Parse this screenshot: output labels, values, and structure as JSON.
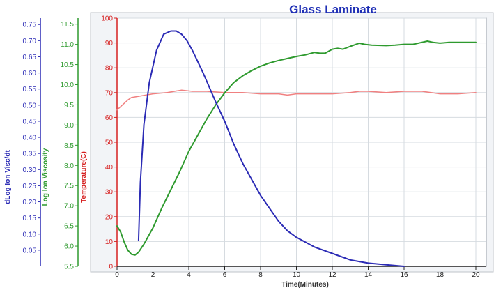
{
  "chart_data": {
    "type": "line",
    "title": "Glass Laminate",
    "xlabel": "Time(Minutes)",
    "xlim": [
      0,
      20
    ],
    "x_ticks": [
      "0",
      "2",
      "4",
      "6",
      "8",
      "10",
      "12",
      "14",
      "16",
      "18",
      "20"
    ],
    "grid": true,
    "axes": [
      {
        "id": "dlog",
        "label": "dLog Ion Visc/dt",
        "color": "#2b2bb5",
        "ylim": [
          0.0,
          0.77
        ],
        "ticks": [
          "0.05",
          "0.10",
          "0.15",
          "0.20",
          "0.25",
          "0.30",
          "0.35",
          "0.40",
          "0.45",
          "0.50",
          "0.55",
          "0.60",
          "0.65",
          "0.70",
          "0.75"
        ]
      },
      {
        "id": "logvisc",
        "label": "Log Ion Viscosity",
        "color": "#2e9a2e",
        "ylim": [
          5.5,
          11.65
        ],
        "ticks": [
          "5.5",
          "6.0",
          "6.5",
          "7.0",
          "7.5",
          "8.0",
          "8.5",
          "9.0",
          "9.5",
          "10.0",
          "10.5",
          "11.0",
          "11.5"
        ]
      },
      {
        "id": "temp",
        "label": "Temperature(C)",
        "color": "#d62020",
        "ylim": [
          0,
          100
        ],
        "ticks": [
          "0",
          "10",
          "20",
          "30",
          "40",
          "50",
          "60",
          "70",
          "80",
          "90",
          "100"
        ]
      }
    ],
    "series": [
      {
        "axis": "temp",
        "color": "#f08080",
        "x": [
          0.0,
          0.3,
          0.6,
          0.8,
          1.2,
          2.0,
          2.8,
          3.6,
          4.2,
          5.0,
          6.0,
          7.0,
          8.0,
          9.0,
          9.5,
          10.0,
          11.0,
          12.0,
          13.0,
          13.5,
          14.0,
          15.0,
          16.0,
          17.0,
          17.5,
          18.0,
          19.0,
          20.0
        ],
        "y": [
          63.0,
          65.0,
          67.0,
          68.0,
          68.5,
          69.5,
          70.0,
          71.0,
          70.5,
          70.5,
          70.0,
          70.0,
          69.5,
          69.5,
          69.0,
          69.5,
          69.5,
          69.5,
          70.0,
          70.5,
          70.5,
          70.0,
          70.5,
          70.5,
          70.0,
          69.5,
          69.5,
          70.0
        ]
      },
      {
        "axis": "logvisc",
        "color": "#2e9a2e",
        "x": [
          0.0,
          0.2,
          0.4,
          0.6,
          0.8,
          1.0,
          1.2,
          1.5,
          2.0,
          2.5,
          3.0,
          3.5,
          4.0,
          4.5,
          5.0,
          5.5,
          6.0,
          6.5,
          7.0,
          7.5,
          8.0,
          8.5,
          9.0,
          9.5,
          10.0,
          10.5,
          11.0,
          11.3,
          11.6,
          12.0,
          12.3,
          12.6,
          13.0,
          13.5,
          13.8,
          14.2,
          15.0,
          15.5,
          16.0,
          16.5,
          17.0,
          17.3,
          17.6,
          18.0,
          18.5,
          19.0,
          19.5,
          20.0
        ],
        "y": [
          6.5,
          6.35,
          6.1,
          5.9,
          5.8,
          5.78,
          5.85,
          6.05,
          6.45,
          6.95,
          7.4,
          7.85,
          8.35,
          8.75,
          9.15,
          9.5,
          9.8,
          10.05,
          10.22,
          10.35,
          10.46,
          10.54,
          10.6,
          10.65,
          10.7,
          10.74,
          10.8,
          10.78,
          10.78,
          10.88,
          10.9,
          10.88,
          10.95,
          11.03,
          11.0,
          10.98,
          10.97,
          10.98,
          11.0,
          11.0,
          11.05,
          11.08,
          11.05,
          11.03,
          11.05,
          11.05,
          11.05,
          11.05
        ]
      },
      {
        "axis": "dlog",
        "color": "#2b2bb5",
        "x": [
          1.2,
          1.3,
          1.5,
          1.8,
          2.2,
          2.6,
          3.0,
          3.3,
          3.6,
          3.9,
          4.2,
          4.8,
          5.5,
          6.0,
          6.5,
          7.0,
          7.5,
          8.0,
          8.5,
          9.0,
          9.5,
          10.0,
          11.0,
          12.0,
          13.0,
          13.5,
          14.0,
          15.0,
          16.0
        ],
        "y": [
          0.08,
          0.26,
          0.44,
          0.57,
          0.67,
          0.72,
          0.73,
          0.73,
          0.72,
          0.7,
          0.67,
          0.6,
          0.51,
          0.45,
          0.38,
          0.32,
          0.27,
          0.22,
          0.18,
          0.14,
          0.11,
          0.09,
          0.06,
          0.04,
          0.02,
          0.015,
          0.01,
          0.005,
          0.0
        ]
      }
    ]
  }
}
